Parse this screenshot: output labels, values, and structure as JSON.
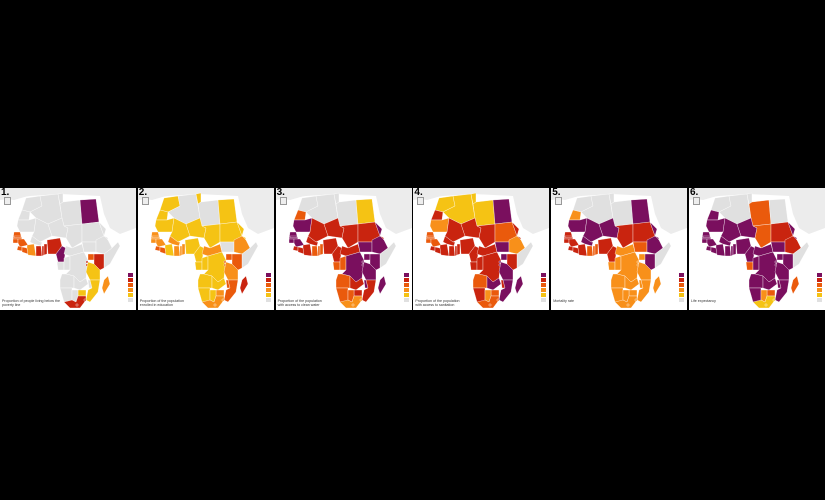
{
  "palette": {
    "c1": "#7a0f5e",
    "c2": "#c9240f",
    "c3": "#ea5a0c",
    "c4": "#f8901a",
    "c5": "#f5c314",
    "none": "#e0e0e0",
    "land_bg": "#ececec",
    "border": "#ffffff"
  },
  "panels": [
    {
      "number": "1.",
      "caption": "Proportion of people living below the",
      "caption2": "poverty line",
      "legend_title": "",
      "legend_labels": [
        "",
        "",
        "",
        "",
        ""
      ],
      "countries": {
        "MA": "none",
        "DZ": "none",
        "TN": "none",
        "LY": "none",
        "EG": "c1",
        "MR": "none",
        "ML": "none",
        "NE": "none",
        "TD": "none",
        "SD": "none",
        "SN": "c3",
        "GM": "c3",
        "GW": "c3",
        "GN": "c3",
        "SL": "c3",
        "LR": "c3",
        "CI": "c4",
        "BF": "none",
        "GH": "c2",
        "TG": "c2",
        "BJ": "c2",
        "NG": "c2",
        "CM": "c1",
        "CF": "none",
        "SS": "none",
        "ET": "none",
        "ER": "none",
        "DJ": "none",
        "SO": "none",
        "GA": "none",
        "CG": "none",
        "CD": "none",
        "UG": "c3",
        "KE": "c2",
        "RW": "c2",
        "BI": "c2",
        "TZ": "c5",
        "AO": "none",
        "ZM": "none",
        "MW": "none",
        "MZ": "c5",
        "ZW": "c5",
        "NA": "none",
        "BW": "none",
        "ZA": "c2",
        "LS": "c2",
        "SZ": "c2",
        "MG": "c4",
        "WS": "none"
      }
    },
    {
      "number": "2.",
      "caption": "Proportion of the population",
      "caption2": "enrolled in education",
      "legend_title": "",
      "legend_labels": [
        "",
        "",
        "",
        "",
        ""
      ],
      "countries": {
        "MA": "c5",
        "DZ": "none",
        "TN": "c5",
        "LY": "none",
        "EG": "c5",
        "MR": "c5",
        "ML": "c5",
        "NE": "c5",
        "TD": "c5",
        "SD": "c5",
        "SN": "c4",
        "GM": "c4",
        "GW": "c4",
        "GN": "c4",
        "SL": "c3",
        "LR": "c3",
        "CI": "c5",
        "BF": "c4",
        "GH": "c4",
        "TG": "c4",
        "BJ": "c4",
        "NG": "c5",
        "CM": "c5",
        "CF": "c4",
        "SS": "none",
        "ET": "c4",
        "ER": "c5",
        "DJ": "c5",
        "SO": "none",
        "GA": "c5",
        "CG": "c5",
        "CD": "c5",
        "UG": "c3",
        "KE": "c3",
        "RW": "c3",
        "BI": "c3",
        "TZ": "c4",
        "AO": "c5",
        "ZM": "c5",
        "MW": "c3",
        "MZ": "c3",
        "ZW": "c4",
        "NA": "c5",
        "BW": "c5",
        "ZA": "c4",
        "LS": "c4",
        "SZ": "c4",
        "MG": "c2",
        "WS": "c5"
      }
    },
    {
      "number": "3.",
      "caption": "Proportion of the population",
      "caption2": "with access to clean water",
      "legend_title": "",
      "legend_labels": [
        "",
        "",
        "",
        "",
        ""
      ],
      "countries": {
        "MA": "none",
        "DZ": "none",
        "TN": "none",
        "LY": "none",
        "EG": "c5",
        "MR": "c1",
        "ML": "c2",
        "NE": "c2",
        "TD": "c2",
        "SD": "c2",
        "SN": "c1",
        "GM": "c1",
        "GW": "c1",
        "GN": "c1",
        "SL": "c2",
        "LR": "c2",
        "CI": "c2",
        "BF": "c2",
        "GH": "c3",
        "TG": "c3",
        "BJ": "c3",
        "NG": "c2",
        "CM": "c2",
        "CF": "c2",
        "SS": "c1",
        "ET": "c1",
        "ER": "c1",
        "DJ": "c2",
        "SO": "none",
        "GA": "c3",
        "CG": "c3",
        "CD": "c1",
        "UG": "c1",
        "KE": "c1",
        "RW": "c1",
        "BI": "c1",
        "TZ": "c1",
        "AO": "c3",
        "ZM": "c2",
        "MW": "c1",
        "MZ": "c2",
        "ZW": "c2",
        "NA": "c3",
        "BW": "c3",
        "ZA": "c4",
        "LS": "c4",
        "SZ": "c4",
        "MG": "c1",
        "WS": "c3"
      }
    },
    {
      "number": "4.",
      "caption": "Proportion of the population",
      "caption2": "with access to sanitation",
      "legend_title": "",
      "legend_labels": [
        "",
        "",
        "",
        "",
        ""
      ],
      "countries": {
        "MA": "c5",
        "DZ": "c5",
        "TN": "c5",
        "LY": "c5",
        "EG": "c1",
        "MR": "c4",
        "ML": "c2",
        "NE": "c2",
        "TD": "c2",
        "SD": "c3",
        "SN": "c3",
        "GM": "c3",
        "GW": "c3",
        "GN": "c3",
        "SL": "c2",
        "LR": "c2",
        "CI": "c2",
        "BF": "c2",
        "GH": "c2",
        "TG": "c2",
        "BJ": "c2",
        "NG": "c2",
        "CM": "c2",
        "CF": "c2",
        "SS": "c1",
        "ET": "c4",
        "ER": "c2",
        "DJ": "c2",
        "SO": "none",
        "GA": "c2",
        "CG": "c2",
        "CD": "c2",
        "UG": "c1",
        "KE": "c2",
        "RW": "c1",
        "BI": "c1",
        "TZ": "c1",
        "AO": "c3",
        "ZM": "c1",
        "MW": "c2",
        "MZ": "c1",
        "ZW": "c3",
        "NA": "c2",
        "BW": "c4",
        "ZA": "c3",
        "LS": "c3",
        "SZ": "c3",
        "MG": "c1",
        "WS": "c2"
      }
    },
    {
      "number": "5.",
      "caption": "Mortality rate",
      "caption2": "",
      "legend_title": "",
      "legend_labels": [
        "",
        "",
        "",
        "",
        ""
      ],
      "countries": {
        "MA": "none",
        "DZ": "none",
        "TN": "none",
        "LY": "none",
        "EG": "c1",
        "MR": "c1",
        "ML": "c1",
        "NE": "c1",
        "TD": "c2",
        "SD": "c2",
        "SN": "c2",
        "GM": "c2",
        "GW": "c2",
        "GN": "c2",
        "SL": "c2",
        "LR": "c2",
        "CI": "c2",
        "BF": "c1",
        "GH": "c3",
        "TG": "c3",
        "BJ": "c3",
        "NG": "c2",
        "CM": "c2",
        "CF": "c4",
        "SS": "c3",
        "ET": "c1",
        "ER": "c1",
        "DJ": "c1",
        "SO": "none",
        "GA": "c4",
        "CG": "c4",
        "CD": "c4",
        "UG": "c4",
        "KE": "c1",
        "RW": "c4",
        "BI": "c4",
        "TZ": "c4",
        "AO": "c4",
        "ZM": "c4",
        "MW": "c4",
        "MZ": "c4",
        "ZW": "c4",
        "NA": "c4",
        "BW": "c4",
        "ZA": "c4",
        "LS": "c4",
        "SZ": "c4",
        "MG": "c4",
        "WS": "c4"
      }
    },
    {
      "number": "6.",
      "caption": "Life expectancy",
      "caption2": "",
      "legend_title": "",
      "legend_labels": [
        "",
        "",
        "",
        "",
        ""
      ],
      "countries": {
        "MA": "none",
        "DZ": "none",
        "TN": "none",
        "LY": "c3",
        "EG": "none",
        "MR": "c1",
        "ML": "c1",
        "NE": "c1",
        "TD": "c3",
        "SD": "c2",
        "SN": "c1",
        "GM": "c1",
        "GW": "c1",
        "GN": "c1",
        "SL": "c1",
        "LR": "c1",
        "CI": "c1",
        "BF": "c1",
        "GH": "c1",
        "TG": "c1",
        "BJ": "c1",
        "NG": "c1",
        "CM": "c1",
        "CF": "c1",
        "SS": "c1",
        "ET": "c2",
        "ER": "c1",
        "DJ": "c1",
        "SO": "none",
        "GA": "c3",
        "CG": "c1",
        "CD": "c1",
        "UG": "c1",
        "KE": "c1",
        "RW": "c1",
        "BI": "c1",
        "TZ": "c1",
        "AO": "c1",
        "ZM": "c1",
        "MW": "c1",
        "MZ": "c1",
        "ZW": "c3",
        "NA": "c1",
        "BW": "c4",
        "ZA": "c5",
        "LS": "c5",
        "SZ": "c5",
        "MG": "c3",
        "WS": "c1"
      }
    }
  ]
}
